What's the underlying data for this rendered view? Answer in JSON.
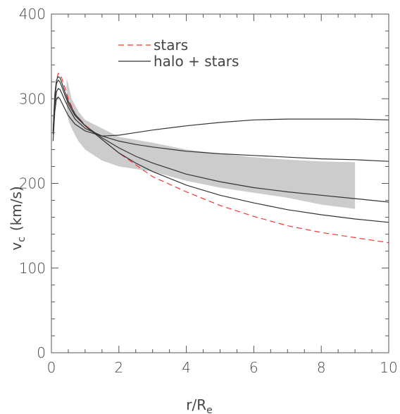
{
  "chart_data": {
    "type": "line",
    "xlabel": "r/R",
    "xlabel_sub": "e",
    "ylabel": "v",
    "ylabel_sub": "c",
    "ylabel_unit": "(km/s)",
    "xlim": [
      0,
      10
    ],
    "ylim": [
      0,
      400
    ],
    "x_ticks": [
      0,
      2,
      4,
      6,
      8,
      10
    ],
    "y_ticks": [
      0,
      100,
      200,
      300,
      400
    ],
    "x_tick_labels": [
      "0",
      "2",
      "4",
      "6",
      "8",
      "10"
    ],
    "y_tick_labels": [
      "0",
      "100",
      "200",
      "300",
      "400"
    ],
    "x_minor_step": 0.5,
    "y_minor_step": 20,
    "grid": false,
    "legend_position": "top-left",
    "legend": [
      {
        "label": "stars",
        "style": "dashed",
        "color": "#ff3333"
      },
      {
        "label": "halo + stars",
        "style": "solid",
        "color": "#333333"
      }
    ],
    "band": {
      "color": "#cccccc",
      "upper": [
        [
          0.45,
          325
        ],
        [
          0.6,
          300
        ],
        [
          0.8,
          285
        ],
        [
          1.0,
          275
        ],
        [
          1.5,
          265
        ],
        [
          2.0,
          255
        ],
        [
          3.0,
          248
        ],
        [
          4.0,
          240
        ],
        [
          5.0,
          235
        ],
        [
          6.0,
          231
        ],
        [
          7.0,
          228
        ],
        [
          8.0,
          226
        ],
        [
          9.0,
          225
        ]
      ],
      "lower": [
        [
          9.0,
          170
        ],
        [
          8.0,
          175
        ],
        [
          7.0,
          183
        ],
        [
          6.0,
          189
        ],
        [
          5.0,
          195
        ],
        [
          4.0,
          203
        ],
        [
          3.0,
          214
        ],
        [
          2.0,
          220
        ],
        [
          1.5,
          227
        ],
        [
          1.0,
          240
        ],
        [
          0.8,
          250
        ],
        [
          0.6,
          265
        ],
        [
          0.5,
          275
        ],
        [
          0.45,
          290
        ]
      ]
    },
    "series": [
      {
        "style": "dashed",
        "color": "#ff3333",
        "x": [
          0.05,
          0.1,
          0.15,
          0.2,
          0.25,
          0.3,
          0.4,
          0.5,
          0.7,
          1.0,
          1.5,
          2.0,
          3.0,
          4.0,
          5.0,
          6.0,
          7.0,
          8.0,
          9.0,
          10.0
        ],
        "y": [
          260,
          300,
          322,
          330,
          329,
          325,
          313,
          300,
          282,
          269,
          252,
          236,
          208,
          190,
          174,
          161,
          150,
          142,
          136,
          130
        ]
      },
      {
        "style": "solid",
        "color": "#333333",
        "x": [
          0.05,
          0.1,
          0.15,
          0.2,
          0.25,
          0.3,
          0.4,
          0.5,
          0.7,
          1.0,
          1.5,
          2.0,
          2.5,
          3.0,
          4.0,
          5.0,
          6.0,
          7.0,
          8.0,
          9.0,
          10.0
        ],
        "y": [
          250,
          285,
          300,
          302,
          300,
          296,
          288,
          280,
          270,
          262,
          256,
          257,
          260,
          263,
          268,
          272,
          275,
          276,
          276,
          276,
          275
        ]
      },
      {
        "style": "solid",
        "color": "#333333",
        "x": [
          0.05,
          0.1,
          0.15,
          0.2,
          0.25,
          0.3,
          0.4,
          0.5,
          0.7,
          1.0,
          1.5,
          2.0,
          2.5,
          3.0,
          4.0,
          5.0,
          6.0,
          7.0,
          8.0,
          9.0,
          10.0
        ],
        "y": [
          258,
          293,
          308,
          312,
          311,
          307,
          298,
          290,
          276,
          265,
          256,
          250,
          246,
          243,
          238,
          235,
          233,
          231,
          229,
          228,
          226
        ]
      },
      {
        "style": "solid",
        "color": "#333333",
        "x": [
          0.05,
          0.1,
          0.15,
          0.2,
          0.25,
          0.3,
          0.4,
          0.5,
          0.7,
          1.0,
          1.5,
          2.0,
          2.5,
          3.0,
          4.0,
          5.0,
          6.0,
          7.0,
          8.0,
          9.0,
          10.0
        ],
        "y": [
          262,
          300,
          318,
          322,
          320,
          315,
          304,
          294,
          280,
          268,
          254,
          242,
          232,
          224,
          211,
          202,
          195,
          190,
          186,
          182,
          178
        ]
      },
      {
        "style": "solid",
        "color": "#333333",
        "x": [
          0.05,
          0.1,
          0.15,
          0.2,
          0.25,
          0.3,
          0.4,
          0.5,
          0.7,
          1.0,
          1.5,
          2.0,
          2.5,
          3.0,
          4.0,
          5.0,
          6.0,
          7.0,
          8.0,
          9.0,
          10.0
        ],
        "y": [
          262,
          305,
          322,
          326,
          325,
          320,
          308,
          297,
          282,
          268,
          252,
          236,
          224,
          214,
          198,
          186,
          177,
          169,
          163,
          158,
          154
        ]
      }
    ]
  }
}
